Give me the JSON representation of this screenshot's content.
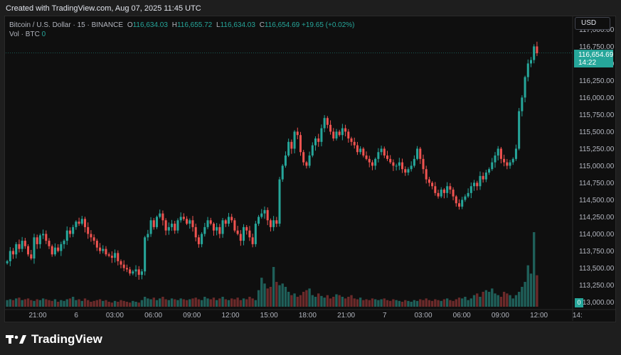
{
  "caption": "Created with TradingView.com, Aug 07, 2025 11:45 UTC",
  "legend": {
    "symbol": "Bitcoin / U.S. Dollar · 15 · BINANCE",
    "o_label": "O",
    "o_value": "116,634.03",
    "h_label": "H",
    "h_value": "116,655.72",
    "l_label": "L",
    "l_value": "116,634.03",
    "c_label": "C",
    "c_value": "116,654.69",
    "change": "+19.65 (+0.02%)",
    "vol_label": "Vol · BTC",
    "vol_value": "0"
  },
  "currency": "USD",
  "last_price": {
    "price": "116,654.69",
    "countdown": "14:22"
  },
  "volume_badge": "0",
  "brand": "TradingView",
  "colors": {
    "up": "#26a69a",
    "down": "#ef5350",
    "up_vol": "#1f5f59",
    "down_vol": "#6b2a2a"
  },
  "chart_data": {
    "type": "candlestick",
    "y_ticks": [
      "117,000.00",
      "116,750.00",
      "116,500.00",
      "116,250.00",
      "116,000.00",
      "115,750.00",
      "115,500.00",
      "115,250.00",
      "115,000.00",
      "114,750.00",
      "114,500.00",
      "114,250.00",
      "114,000.00",
      "113,750.00",
      "113,500.00",
      "113,250.00",
      "113,000.00"
    ],
    "x_ticks": [
      "21:00",
      "6",
      "03:00",
      "06:00",
      "09:00",
      "12:00",
      "15:00",
      "18:00",
      "21:00",
      "7",
      "03:00",
      "06:00",
      "09:00",
      "12:00",
      "14:"
    ],
    "ylim": [
      112995,
      117035
    ],
    "last": 116654.69,
    "path": [
      113600,
      113750,
      113700,
      113850,
      113780,
      113900,
      113820,
      113700,
      113640,
      113950,
      113850,
      113980,
      114000,
      113900,
      113820,
      113700,
      113800,
      113750,
      113850,
      113900,
      114050,
      114000,
      114100,
      114180,
      114150,
      114220,
      114100,
      114000,
      113950,
      113900,
      113800,
      113750,
      113780,
      113700,
      113680,
      113650,
      113720,
      113600,
      113550,
      113500,
      113480,
      113420,
      113450,
      113480,
      113400,
      113450,
      113950,
      114000,
      114200,
      114100,
      114250,
      114300,
      114200,
      114050,
      114100,
      114150,
      114050,
      114200,
      114250,
      114220,
      114150,
      114200,
      114100,
      113950,
      113850,
      114000,
      114100,
      114200,
      114150,
      114050,
      114100,
      114000,
      114200,
      114150,
      114250,
      114200,
      114050,
      114000,
      113900,
      114100,
      114050,
      113950,
      113850,
      114150,
      114250,
      114300,
      114350,
      114200,
      114100,
      114200,
      114150,
      114800,
      115000,
      115150,
      115350,
      115250,
      115500,
      115450,
      115200,
      115050,
      115000,
      115150,
      115300,
      115400,
      115350,
      115550,
      115700,
      115600,
      115500,
      115400,
      115500,
      115450,
      115550,
      115500,
      115400,
      115350,
      115300,
      115200,
      115250,
      115150,
      115100,
      115050,
      115000,
      115100,
      115200,
      115250,
      115150,
      115100,
      115050,
      115000,
      115000,
      115050,
      114950,
      114900,
      114950,
      115000,
      115100,
      115250,
      115100,
      114950,
      114800,
      114750,
      114700,
      114600,
      114550,
      114650,
      114600,
      114700,
      114650,
      114550,
      114450,
      114400,
      114500,
      114550,
      114600,
      114700,
      114750,
      114700,
      114850,
      114800,
      114900,
      114950,
      115050,
      115150,
      115250,
      115100,
      115050,
      115000,
      115050,
      115100,
      115250,
      115800,
      116000,
      116300,
      116500,
      116550,
      116750,
      116650
    ],
    "volumes": [
      8,
      9,
      8,
      10,
      11,
      8,
      9,
      10,
      8,
      7,
      9,
      8,
      10,
      9,
      8,
      7,
      9,
      6,
      8,
      7,
      9,
      10,
      12,
      8,
      9,
      7,
      10,
      8,
      6,
      7,
      8,
      9,
      7,
      8,
      6,
      5,
      7,
      6,
      8,
      7,
      6,
      5,
      7,
      6,
      5,
      8,
      12,
      10,
      9,
      11,
      8,
      10,
      12,
      9,
      8,
      10,
      9,
      8,
      10,
      9,
      8,
      9,
      10,
      11,
      9,
      8,
      12,
      10,
      9,
      11,
      8,
      10,
      12,
      9,
      8,
      10,
      9,
      11,
      8,
      10,
      9,
      12,
      10,
      8,
      20,
      35,
      28,
      22,
      24,
      48,
      30,
      26,
      28,
      24,
      18,
      14,
      16,
      12,
      14,
      18,
      20,
      22,
      14,
      12,
      16,
      13,
      11,
      14,
      10,
      12,
      15,
      14,
      12,
      10,
      12,
      14,
      10,
      9,
      11,
      8,
      9,
      8,
      10,
      9,
      8,
      9,
      10,
      8,
      7,
      9,
      8,
      7,
      6,
      8,
      7,
      6,
      8,
      7,
      9,
      8,
      10,
      8,
      7,
      9,
      8,
      7,
      9,
      10,
      8,
      7,
      9,
      11,
      10,
      12,
      8,
      10,
      14,
      16,
      12,
      18,
      20,
      18,
      22,
      16,
      14,
      12,
      18,
      16,
      14,
      10,
      14,
      18,
      24,
      30,
      50,
      40,
      90,
      38
    ]
  }
}
